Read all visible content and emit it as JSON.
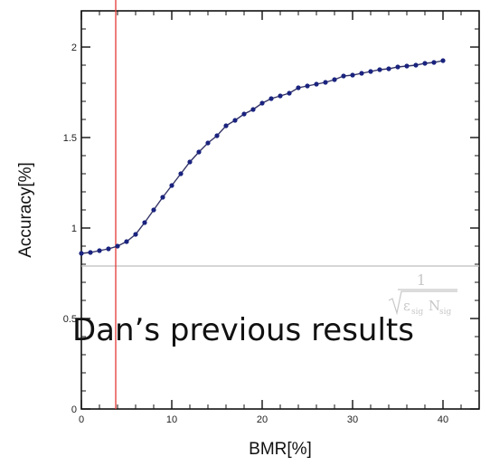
{
  "chart_data": {
    "type": "line",
    "xlabel": "BMR[%]",
    "ylabel": "Accuracy[%]",
    "xlim": [
      0,
      44
    ],
    "ylim": [
      0,
      2.2
    ],
    "x_ticks": [
      0,
      10,
      20,
      30,
      40
    ],
    "y_ticks": [
      0,
      0.5,
      1,
      1.5,
      2
    ],
    "x_tick_labels": [
      "0",
      "10",
      "20",
      "30",
      "40"
    ],
    "y_tick_labels": [
      "0",
      "0.5",
      "1",
      "1.5",
      "2"
    ],
    "grid": false,
    "series": [
      {
        "color": "#1a237e",
        "marker": "circle",
        "x": [
          0,
          1,
          2,
          3,
          4,
          5,
          6,
          7,
          8,
          9,
          10,
          11,
          12,
          13,
          14,
          15,
          16,
          17,
          18,
          19,
          20,
          21,
          22,
          23,
          24,
          25,
          26,
          27,
          28,
          29,
          30,
          31,
          32,
          33,
          34,
          35,
          36,
          37,
          38,
          39,
          40
        ],
        "y": [
          0.86,
          0.865,
          0.875,
          0.885,
          0.9,
          0.925,
          0.965,
          1.03,
          1.1,
          1.17,
          1.235,
          1.3,
          1.365,
          1.42,
          1.47,
          1.51,
          1.565,
          1.595,
          1.63,
          1.655,
          1.69,
          1.715,
          1.73,
          1.745,
          1.775,
          1.785,
          1.795,
          1.805,
          1.82,
          1.84,
          1.845,
          1.855,
          1.865,
          1.875,
          1.88,
          1.89,
          1.895,
          1.9,
          1.91,
          1.915,
          1.925
        ]
      }
    ],
    "reference_lines": [
      {
        "orientation": "horizontal",
        "y": 0.79,
        "color": "#bdbdbd"
      },
      {
        "orientation": "vertical",
        "x": 3.8,
        "color": "#e53935"
      }
    ],
    "formula_label": {
      "numerator": "1",
      "epsilon": "ε",
      "epsilon_sub": "sig",
      "n": "N",
      "n_sub": "sig"
    },
    "annotation": "Dan’s previous results"
  }
}
